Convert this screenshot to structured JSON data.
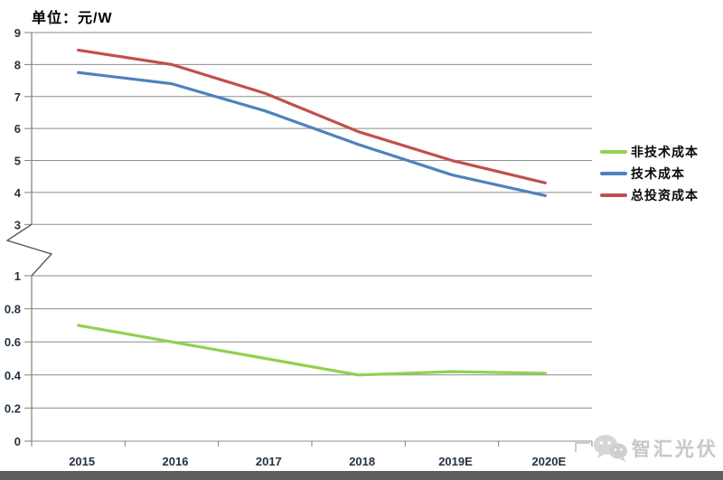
{
  "watermark": {
    "text": "智汇光伏"
  },
  "chart_data": {
    "type": "line",
    "title": "单位：元/W",
    "categories": [
      "2015",
      "2016",
      "2017",
      "2018",
      "2019E",
      "2020E"
    ],
    "series": [
      {
        "name": "非技术成本",
        "color": "#92d050",
        "values": [
          0.7,
          0.6,
          0.5,
          0.4,
          0.42,
          0.41
        ]
      },
      {
        "name": "技术成本",
        "color": "#4f81bd",
        "values": [
          7.75,
          7.4,
          6.55,
          5.5,
          4.55,
          3.9
        ]
      },
      {
        "name": "总投资成本",
        "color": "#c0504d",
        "values": [
          8.45,
          8.0,
          7.1,
          5.9,
          5.0,
          4.3
        ]
      }
    ],
    "y_axis": {
      "broken": true,
      "upper_range": [
        3,
        9
      ],
      "lower_range": [
        0,
        1
      ],
      "upper_ticks": [
        "9",
        "8",
        "7",
        "6",
        "5",
        "4",
        "3"
      ],
      "lower_ticks": [
        "1",
        "0.8",
        "0.6",
        "0.4",
        "0.2",
        "0"
      ]
    },
    "xlabel": "",
    "ylabel": "单位：元/W",
    "grid": true,
    "legend_position": "right",
    "colors": {
      "gridline": "#8c8c8c",
      "axis": "#7f7f7f",
      "tick_text": "#243245",
      "bottom_bar": "#5e5e5e",
      "watermark_gray": "#c8c8c8"
    }
  }
}
